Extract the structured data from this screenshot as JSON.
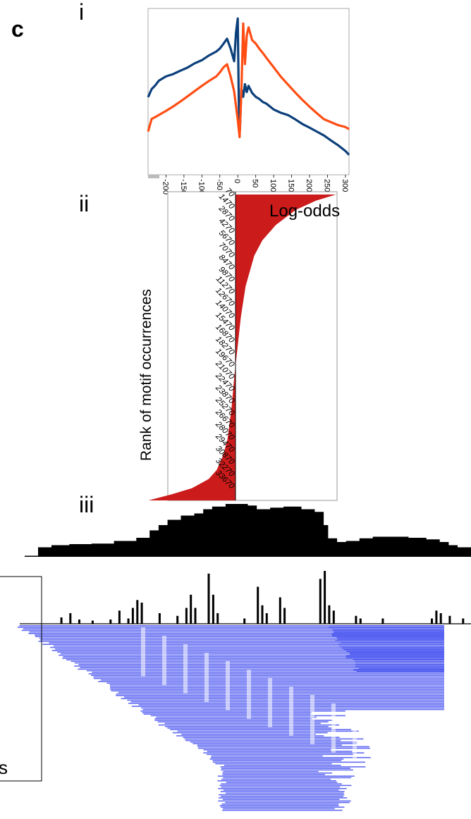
{
  "panel_labels": {
    "main": "c",
    "i": "i",
    "ii": "ii",
    "iii": "iii"
  },
  "colors": {
    "blue": "#0b3f7a",
    "orange": "#ff4d14",
    "red": "#cc1b1b",
    "reads": "#4652f0",
    "black": "#000000"
  },
  "chart_data": [
    {
      "id": "i",
      "type": "line",
      "title": "",
      "xlabel": "",
      "ylabel": "",
      "xlim": [
        -250,
        310
      ],
      "x_ticks": [
        "-200",
        "-150",
        "-100",
        "-50",
        "0",
        "50",
        "100",
        "150",
        "200",
        "250",
        "300"
      ],
      "x_tick_values": [
        -200,
        -150,
        -100,
        -50,
        0,
        50,
        100,
        150,
        200,
        250,
        300
      ],
      "ylim": [
        0,
        1
      ],
      "series": [
        {
          "color": "#0b3f7a",
          "x": [
            -250,
            -240,
            -230,
            -220,
            -200,
            -180,
            -160,
            -140,
            -120,
            -100,
            -80,
            -60,
            -50,
            -40,
            -30,
            -20,
            -10,
            -5,
            0,
            3,
            6,
            10,
            15,
            20,
            25,
            30,
            40,
            50,
            60,
            70,
            80,
            100,
            120,
            140,
            160,
            180,
            200,
            220,
            240,
            260,
            280,
            300,
            310
          ],
          "y": [
            0.45,
            0.5,
            0.52,
            0.55,
            0.58,
            0.6,
            0.63,
            0.66,
            0.7,
            0.73,
            0.77,
            0.8,
            0.82,
            0.85,
            0.88,
            0.8,
            0.7,
            0.9,
            1.0,
            0.35,
            0.2,
            0.5,
            0.45,
            0.55,
            0.5,
            0.55,
            0.5,
            0.47,
            0.45,
            0.42,
            0.4,
            0.35,
            0.32,
            0.3,
            0.27,
            0.24,
            0.22,
            0.2,
            0.18,
            0.15,
            0.12,
            0.08,
            0.05
          ]
        },
        {
          "color": "#ff4d14",
          "x": [
            -250,
            -240,
            -230,
            -220,
            -200,
            -180,
            -160,
            -140,
            -120,
            -100,
            -80,
            -60,
            -50,
            -40,
            -30,
            -20,
            -10,
            0,
            5,
            10,
            15,
            20,
            25,
            30,
            40,
            50,
            60,
            70,
            80,
            100,
            120,
            140,
            160,
            180,
            200,
            220,
            240,
            260,
            280,
            300,
            310
          ],
          "y": [
            0.2,
            0.3,
            0.32,
            0.34,
            0.37,
            0.4,
            0.43,
            0.46,
            0.49,
            0.52,
            0.55,
            0.58,
            0.61,
            0.65,
            0.68,
            0.6,
            0.5,
            0.3,
            0.18,
            0.5,
            1.0,
            0.7,
            0.9,
            0.95,
            0.85,
            0.82,
            0.78,
            0.75,
            0.72,
            0.66,
            0.6,
            0.55,
            0.5,
            0.45,
            0.4,
            0.35,
            0.3,
            0.27,
            0.24,
            0.22,
            0.2
          ]
        }
      ]
    },
    {
      "id": "ii",
      "type": "area",
      "title": "",
      "xlabel": "Log-odds",
      "ylabel": "Rank of motif occurrences",
      "y_ticks": [
        "70",
        "1470",
        "2870",
        "4270",
        "5670",
        "7070",
        "8470",
        "9870",
        "11270",
        "12670",
        "14070",
        "15470",
        "16870",
        "18270",
        "19670",
        "21070",
        "22470",
        "23870",
        "25270",
        "26670",
        "28070",
        "29470",
        "30870",
        "32270",
        "33670"
      ],
      "series": [
        {
          "color": "#cc1b1b",
          "rank_fraction": [
            0.0,
            0.02,
            0.05,
            0.1,
            0.15,
            0.2,
            0.3,
            0.4,
            0.5,
            0.6,
            0.7,
            0.8,
            0.85,
            0.9,
            0.93,
            0.96,
            0.98,
            1.0
          ],
          "log_odds": [
            150,
            120,
            90,
            60,
            40,
            28,
            15,
            8,
            3,
            -2,
            -6,
            -12,
            -18,
            -28,
            -40,
            -65,
            -95,
            -130
          ]
        }
      ]
    },
    {
      "id": "iii-coverage",
      "type": "area",
      "title": "",
      "x_fraction": [
        0.0,
        0.03,
        0.06,
        0.1,
        0.15,
        0.2,
        0.25,
        0.28,
        0.3,
        0.32,
        0.35,
        0.38,
        0.4,
        0.42,
        0.45,
        0.5,
        0.52,
        0.55,
        0.58,
        0.62,
        0.65,
        0.67,
        0.68,
        0.7,
        0.72,
        0.75,
        0.78,
        0.82,
        0.86,
        0.9,
        0.93,
        0.95,
        0.97,
        1.0
      ],
      "y_fraction": [
        0.02,
        0.18,
        0.22,
        0.24,
        0.25,
        0.3,
        0.36,
        0.5,
        0.6,
        0.7,
        0.78,
        0.82,
        0.9,
        0.95,
        1.0,
        0.97,
        0.9,
        0.93,
        0.95,
        0.9,
        0.85,
        0.6,
        0.35,
        0.28,
        0.3,
        0.35,
        0.38,
        0.38,
        0.36,
        0.33,
        0.28,
        0.22,
        0.18,
        0.15
      ]
    },
    {
      "id": "iii-peaks",
      "type": "bar",
      "title": "",
      "x_fraction": [
        0.08,
        0.1,
        0.12,
        0.15,
        0.19,
        0.21,
        0.23,
        0.24,
        0.25,
        0.26,
        0.3,
        0.34,
        0.36,
        0.37,
        0.38,
        0.41,
        0.42,
        0.43,
        0.49,
        0.52,
        0.53,
        0.54,
        0.57,
        0.58,
        0.66,
        0.67,
        0.68,
        0.69,
        0.74,
        0.75,
        0.8,
        0.91,
        0.92,
        0.93,
        0.95,
        0.98
      ],
      "y_fraction": [
        0.12,
        0.2,
        0.08,
        0.06,
        0.08,
        0.25,
        0.1,
        0.3,
        0.45,
        0.4,
        0.2,
        0.15,
        0.3,
        0.55,
        0.3,
        0.95,
        0.55,
        0.2,
        0.1,
        0.7,
        0.35,
        0.2,
        0.5,
        0.3,
        0.85,
        1.0,
        0.35,
        0.25,
        0.15,
        0.1,
        0.1,
        0.1,
        0.25,
        0.2,
        0.15,
        0.1
      ]
    }
  ]
}
